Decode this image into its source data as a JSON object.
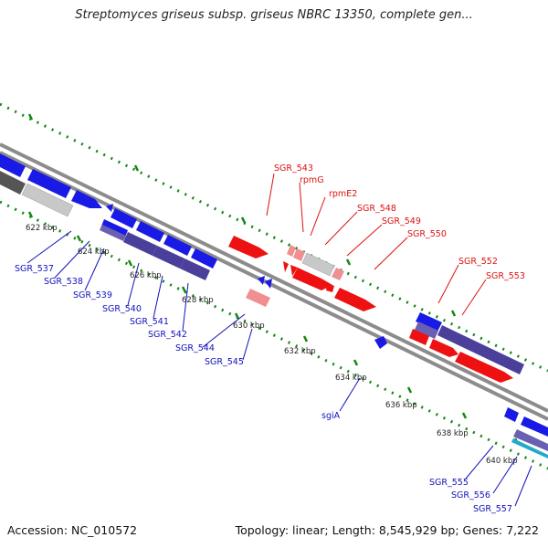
{
  "title": "Streptomyces griseus subsp. griseus NBRC 13350, complete gen...",
  "footer": {
    "accession": "Accession: NC_010572",
    "stats": "Topology: linear; Length: 8,545,929 bp; Genes: 7,222"
  },
  "colors": {
    "forward_red": "#ee1111",
    "forward_pink": "#ef8f8f",
    "reverse_blue": "#1a1ae6",
    "reverse_purple": "#4a3f9a",
    "grey_gene": "#555555",
    "light_grey_gene": "#c8c8c8",
    "rna_teal": "#22aacc",
    "tick_green": "#118811",
    "label_red": "#dd1111",
    "label_blue": "#1111bb"
  },
  "kbp_labels": [
    "622 kbp",
    "624 kbp",
    "626 kbp",
    "628 kbp",
    "630 kbp",
    "632 kbp",
    "634 kbp",
    "636 kbp",
    "638 kbp",
    "640 kbp"
  ],
  "forward_genes": [
    "SGR_543",
    "rpmG",
    "rpmE2",
    "SGR_548",
    "SGR_549",
    "SGR_550",
    "SGR_552",
    "SGR_553"
  ],
  "reverse_genes": [
    "SGR_537",
    "SGR_538",
    "SGR_539",
    "SGR_540",
    "SGR_541",
    "SGR_542",
    "SGR_544",
    "SGR_545",
    "sgiA",
    "SGR_555",
    "SGR_556",
    "SGR_557"
  ]
}
